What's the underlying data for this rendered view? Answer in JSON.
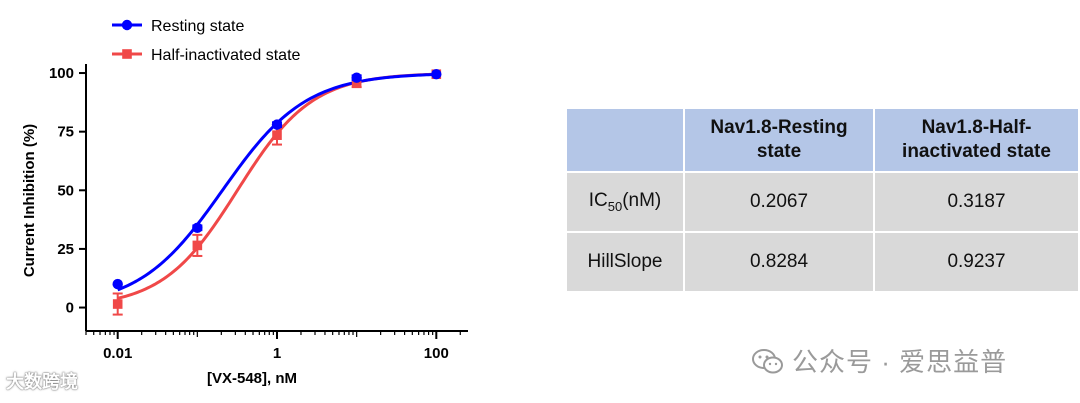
{
  "chart_data": {
    "type": "scatter",
    "xlabel": "[VX-548], nM",
    "ylabel": "Current Inhibition (%)",
    "xscale": "log",
    "xlim": [
      0.004,
      250
    ],
    "ylim": [
      -10,
      103
    ],
    "x_ticks": [
      0.01,
      1,
      100
    ],
    "x_tick_labels": [
      "0.01",
      "1",
      "100"
    ],
    "y_ticks": [
      0,
      25,
      50,
      75,
      100
    ],
    "y_tick_labels": [
      "0",
      "25",
      "50",
      "75",
      "100"
    ],
    "grid": false,
    "legend_position": "top-left",
    "series": [
      {
        "name": "Resting state",
        "color": "#0000ff",
        "marker": "circle",
        "x": [
          0.01,
          0.1,
          1,
          10,
          100
        ],
        "y": [
          10,
          34,
          78,
          98,
          99.5
        ],
        "err": [
          0.5,
          1,
          1,
          1,
          0.5
        ],
        "fit": {
          "ic50": 0.2067,
          "hill": 0.8284,
          "bottom": 0,
          "top": 100
        }
      },
      {
        "name": "Half-inactivated state",
        "color": "#f04848",
        "marker": "square",
        "x": [
          0.01,
          0.1,
          1,
          10,
          100
        ],
        "y": [
          1.5,
          26.5,
          73.5,
          96,
          99.5
        ],
        "err": [
          4.5,
          4.5,
          4,
          2,
          0.5
        ],
        "fit": {
          "ic50": 0.3187,
          "hill": 0.9237,
          "bottom": 0,
          "top": 100
        }
      }
    ]
  },
  "table": {
    "headers": [
      "",
      "Nav1.8-Resting state",
      "Nav1.8-Half-inactivated state"
    ],
    "header_lines": [
      [
        "",
        ""
      ],
      [
        "Nav1.8-Resting",
        "state"
      ],
      [
        "Nav1.8-Half-",
        "inactivated state"
      ]
    ],
    "rows": [
      {
        "label_main": "IC",
        "label_sub": "50",
        "label_suffix": "(nM)",
        "resting": "0.2067",
        "half": "0.3187"
      },
      {
        "label_main": "HillSlope",
        "label_sub": "",
        "label_suffix": "",
        "resting": "0.8284",
        "half": "0.9237"
      }
    ],
    "header_color": "#b4c6e7",
    "cell_color": "#d9d9d9"
  },
  "watermarks": {
    "left": "大数跨境",
    "right": "公众号 · 爱思益普"
  }
}
